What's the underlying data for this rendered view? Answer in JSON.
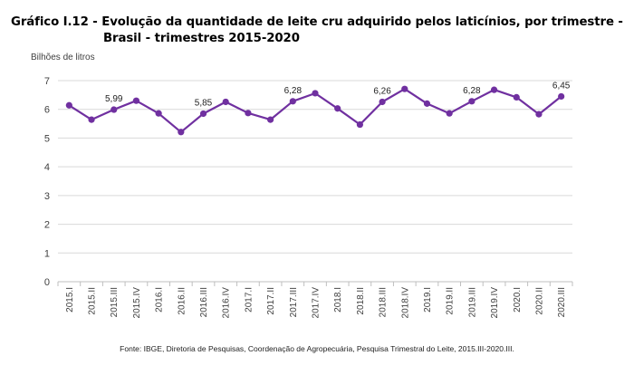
{
  "figure": {
    "title_line1": "Gráfico I.12 - Evolução da quantidade de leite cru adquirido pelos laticínios, por trimestre -",
    "title_line2": "Brasil - trimestres 2015-2020",
    "source": "Fonte: IBGE, Diretoria de Pesquisas, Coordenação de Agropecuária, Pesquisa Trimestral do Leite, 2015.III-2020.III."
  },
  "chart_data": {
    "type": "line",
    "title": "Gráfico I.12 - Evolução da quantidade de leite cru adquirido pelos laticínios, por trimestre - Brasil - trimestres 2015-2020",
    "xlabel": "",
    "ylabel": "Bilhões de litros",
    "ylim": [
      0,
      7
    ],
    "yticks": [
      0,
      1,
      2,
      3,
      4,
      5,
      6,
      7
    ],
    "grid": "horizontal",
    "legend": "none",
    "color": "#7030a0",
    "categories": [
      "2015.I",
      "2015.II",
      "2015.III",
      "2015.IV",
      "2016.I",
      "2016.II",
      "2016.III",
      "2016.IV",
      "2017.I",
      "2017.II",
      "2017.III",
      "2017.IV",
      "2018.I",
      "2018.II",
      "2018.III",
      "2018.IV",
      "2019.I",
      "2019.II",
      "2019.III",
      "2019.IV",
      "2020.I",
      "2020.II",
      "2020.III"
    ],
    "series": [
      {
        "values": [
          6.14,
          5.64,
          5.99,
          6.3,
          5.86,
          5.21,
          5.85,
          6.26,
          5.87,
          5.64,
          6.28,
          6.56,
          6.03,
          5.47,
          6.26,
          6.71,
          6.2,
          5.86,
          6.28,
          6.68,
          6.42,
          5.83,
          6.45
        ]
      }
    ],
    "data_labels": [
      {
        "category": "2015.III",
        "text": "5,99"
      },
      {
        "category": "2016.III",
        "text": "5,85"
      },
      {
        "category": "2017.III",
        "text": "6,28"
      },
      {
        "category": "2018.III",
        "text": "6,26"
      },
      {
        "category": "2019.III",
        "text": "6,28"
      },
      {
        "category": "2020.III",
        "text": "6,45"
      }
    ]
  }
}
